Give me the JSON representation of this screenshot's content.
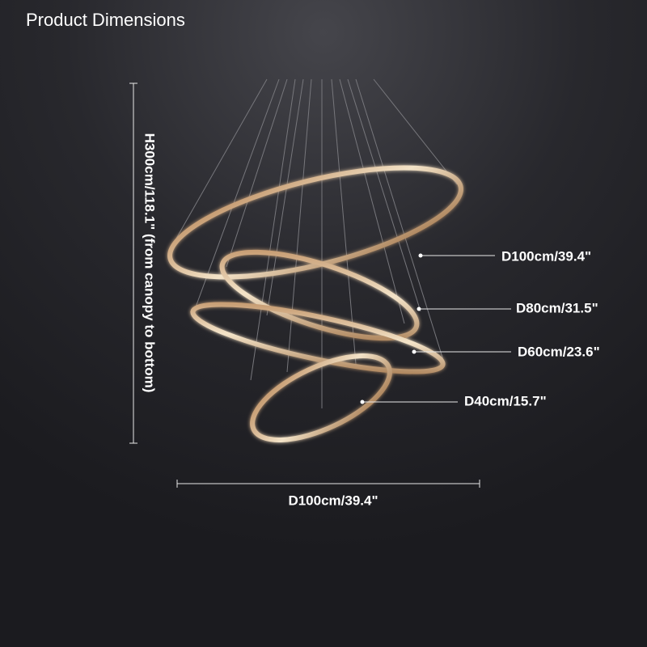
{
  "header": {
    "title": "Product Dimensions"
  },
  "dimensions": {
    "height": "H300cm/118.1\" (from canopy to bottom)",
    "width": "D100cm/39.4\""
  },
  "rings": [
    {
      "label": "D100cm/39.4\""
    },
    {
      "label": "D80cm/31.5\""
    },
    {
      "label": "D60cm/23.6\""
    },
    {
      "label": "D40cm/15.7\""
    }
  ]
}
